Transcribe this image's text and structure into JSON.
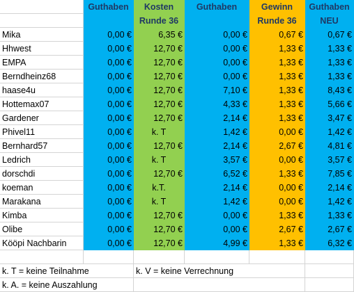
{
  "headers_top": [
    "",
    "Guthaben",
    "Kosten",
    "Guthaben",
    "Gewinn",
    "Guthaben"
  ],
  "headers_bottom": [
    "",
    "",
    "Runde 36",
    "",
    "Runde 36",
    "NEU"
  ],
  "rows": [
    [
      "Mika",
      "0,00 €",
      "6,35 €",
      "0,00 €",
      "0,67 €",
      "0,67 €"
    ],
    [
      "Hhwest",
      "0,00 €",
      "12,70 €",
      "0,00 €",
      "1,33 €",
      "1,33 €"
    ],
    [
      "EMPA",
      "0,00 €",
      "12,70 €",
      "0,00 €",
      "1,33 €",
      "1,33 €"
    ],
    [
      "Berndheinz68",
      "0,00 €",
      "12,70 €",
      "0,00 €",
      "1,33 €",
      "1,33 €"
    ],
    [
      "haase4u",
      "0,00 €",
      "12,70 €",
      "7,10 €",
      "1,33 €",
      "8,43 €"
    ],
    [
      "Hottemax07",
      "0,00 €",
      "12,70 €",
      "4,33 €",
      "1,33 €",
      "5,66 €"
    ],
    [
      "Gardener",
      "0,00 €",
      "12,70 €",
      "2,14 €",
      "1,33 €",
      "3,47 €"
    ],
    [
      "Phivel11",
      "0,00 €",
      "k. T",
      "1,42 €",
      "0,00 €",
      "1,42 €"
    ],
    [
      "Bernhard57",
      "0,00 €",
      "12,70 €",
      "2,14 €",
      "2,67 €",
      "4,81 €"
    ],
    [
      "Ledrich",
      "0,00 €",
      "k. T",
      "3,57 €",
      "0,00 €",
      "3,57 €"
    ],
    [
      "dorschdi",
      "0,00 €",
      "12,70 €",
      "6,52 €",
      "1,33 €",
      "7,85 €"
    ],
    [
      "koeman",
      "0,00 €",
      "k.T.",
      "2,14 €",
      "0,00 €",
      "2,14 €"
    ],
    [
      "Marakana",
      "0,00 €",
      "k. T",
      "1,42 €",
      "0,00 €",
      "1,42 €"
    ],
    [
      "Kimba",
      "0,00 €",
      "12,70 €",
      "0,00 €",
      "1,33 €",
      "1,33 €"
    ],
    [
      "Olibe",
      "0,00 €",
      "12,70 €",
      "0,00 €",
      "2,67 €",
      "2,67 €"
    ],
    [
      "Kööpi Nachbarin",
      "0,00 €",
      "12,70 €",
      "4,99 €",
      "1,33 €",
      "6,32 €"
    ]
  ],
  "legend": {
    "kt": "k. T = keine Teilnahme",
    "kv": "k. V = keine Verrechnung",
    "ka": "k. A. = keine Auszahlung"
  }
}
